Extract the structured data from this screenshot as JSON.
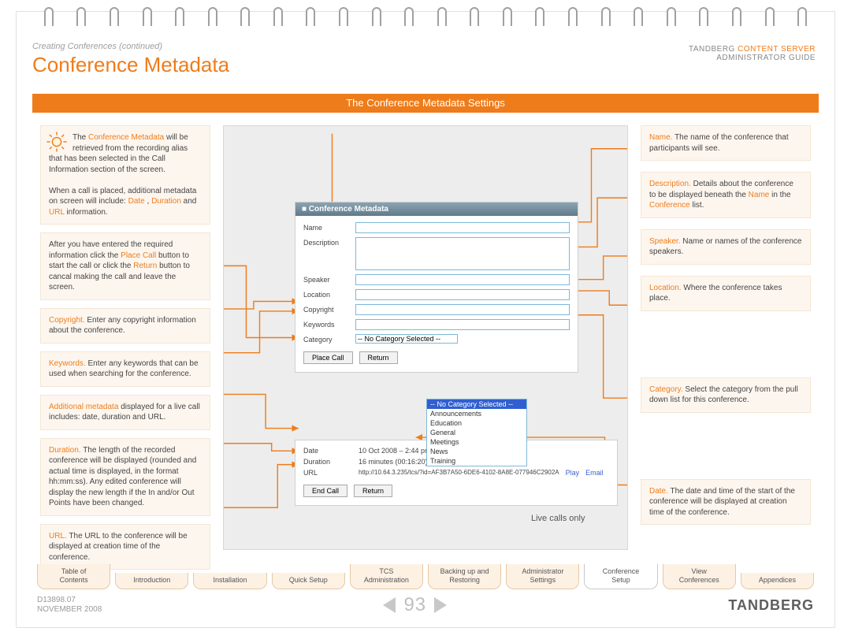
{
  "header": {
    "breadcrumb": "Creating Conferences (continued)",
    "title": "Conference Metadata",
    "brand_line1": "TANDBERG",
    "brand_accent": "CONTENT SERVER",
    "brand_line2": "ADMINISTRATOR GUIDE"
  },
  "section_title": "The Conference Metadata Settings",
  "left": {
    "intro": {
      "k1": "Conference Metadata",
      "t1": "The ",
      "t2": " will be retrieved from the recording alias that has been selected in the Call Information section of the screen.",
      "p2a": "When a call is placed, additional metadata on screen will include: ",
      "d1": "Date",
      "d2": "Duration",
      "d3": "URL",
      "p2b": ", ",
      "p2c": " and ",
      "p2d": " information."
    },
    "place": {
      "t1": "After you have entered the required information click the ",
      "k1": "Place Call",
      "t2": " button to start the call or click the ",
      "k2": "Return",
      "t3": " button to cancal making the call and leave the screen."
    },
    "copyright": {
      "k": "Copyright.",
      "t": " Enter any copyright information about the conference."
    },
    "keywords": {
      "k": "Keywords.",
      "t": " Enter any keywords that can be used when searching for the conference."
    },
    "addl": {
      "k": "Additional metadata",
      "t": " displayed for a live call includes: date, duration and URL."
    },
    "duration": {
      "k": "Duration.",
      "t": " The length of the recorded conference will be displayed (rounded and actual time is displayed, in the format hh:mm:ss). Any edited conference will display the new length if the In and/or Out Points have been changed."
    },
    "url": {
      "k": "URL.",
      "t": " The URL to the conference will be displayed at creation time of the conference."
    }
  },
  "right": {
    "name": {
      "k": "Name.",
      "t": " The name of the conference that participants will see."
    },
    "desc": {
      "k": "Description.",
      "t1": " Details about the conference to be displayed beneath the ",
      "k2": "Name",
      "t2": " in the ",
      "k3": "Conference",
      "t3": " list."
    },
    "speaker": {
      "k": "Speaker.",
      "t": " Name or names of the conference speakers."
    },
    "location": {
      "k": "Location.",
      "t": " Where the conference takes place."
    },
    "category": {
      "k": "Category.",
      "t": " Select the category from the pull down list for this conference."
    },
    "date": {
      "k": "Date.",
      "t": " The date and time of the start of the conference will be displayed at creation time of the conference."
    }
  },
  "form": {
    "title": "Conference Metadata",
    "labels": {
      "name": "Name",
      "description": "Description",
      "speaker": "Speaker",
      "location": "Location",
      "copyright": "Copyright",
      "keywords": "Keywords",
      "category": "Category"
    },
    "category_selected": "-- No Category Selected --",
    "category_options": [
      "-- No Category Selected --",
      "Announcements",
      "Education",
      "General",
      "Meetings",
      "News",
      "Training"
    ],
    "btn_place": "Place Call",
    "btn_return": "Return"
  },
  "live": {
    "date_label": "Date",
    "date_val": "10 Oct 2008 – 2:44 pm",
    "duration_label": "Duration",
    "duration_val": "16 minutes (00:16:20)",
    "url_label": "URL",
    "url_val": "http://10.64.3.235/tcs/?id=AF3B7A50-6DE6-4102-8A8E-077946C2902A",
    "link_play": "Play",
    "link_email": "Email",
    "btn_end": "End Call",
    "btn_return": "Return",
    "caption": "Live calls only"
  },
  "tabs": [
    "Table of\nContents",
    "Introduction",
    "Installation",
    "Quick Setup",
    "TCS\nAdministration",
    "Backing up and\nRestoring",
    "Administrator\nSettings",
    "Conference\nSetup",
    "View\nConferences",
    "Appendices"
  ],
  "active_tab_index": 7,
  "footer": {
    "doc_id": "D13898.07",
    "doc_date": "NOVEMBER 2008",
    "page": "93",
    "brand": "TANDBERG"
  },
  "colors": {
    "accent": "#ef7c1a",
    "arrow": "#ef7c1a"
  }
}
